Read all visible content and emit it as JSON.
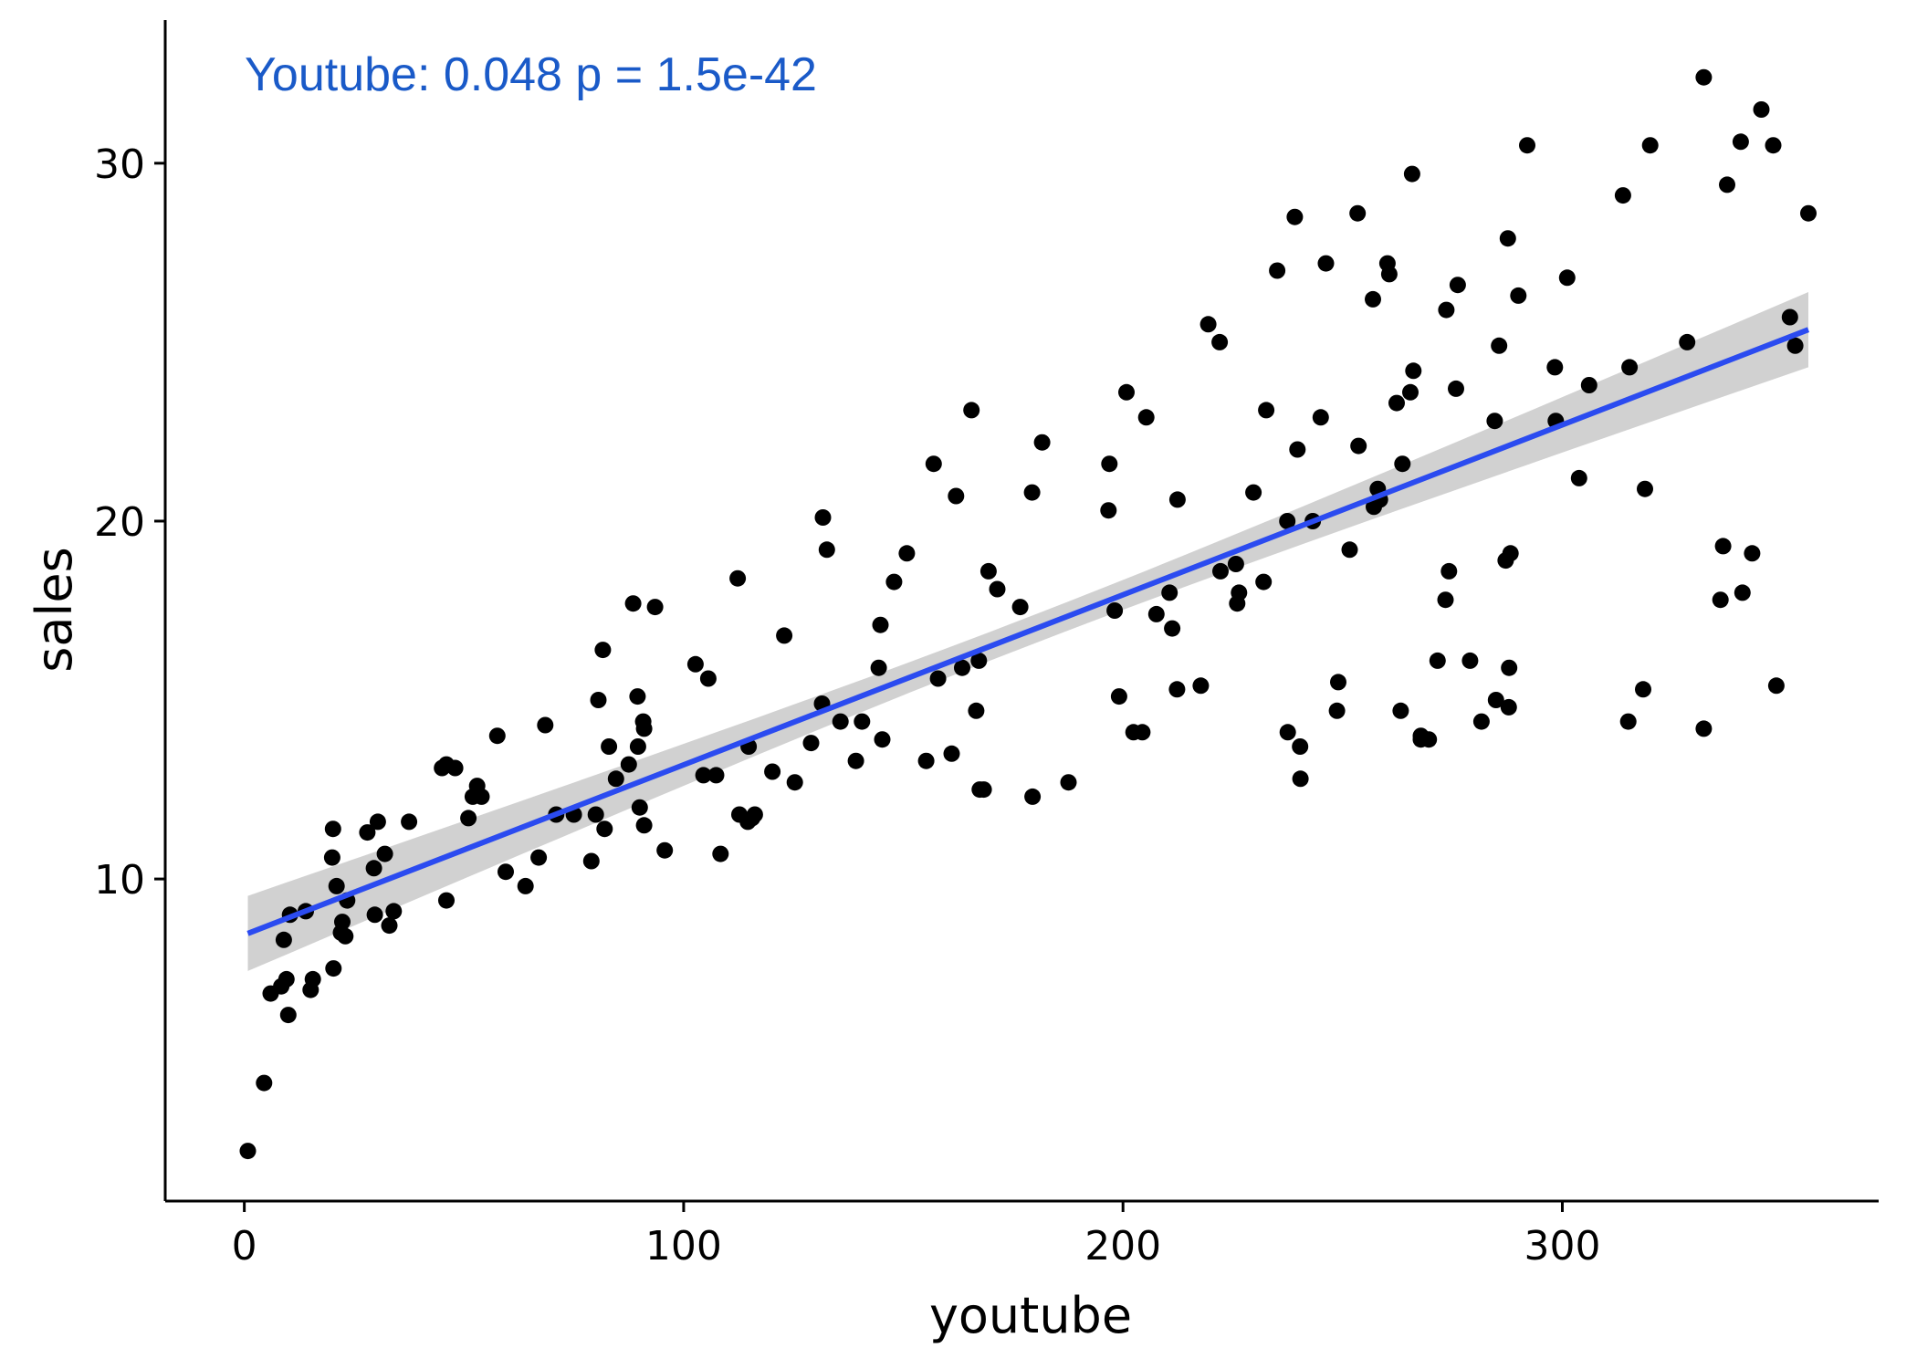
{
  "chart_data": {
    "type": "scatter",
    "xlabel": "youtube",
    "ylabel": "sales",
    "xlim": [
      -18,
      372
    ],
    "ylim": [
      1.0,
      34.0
    ],
    "x_ticks": [
      0,
      100,
      200,
      300
    ],
    "y_ticks": [
      10,
      20,
      30
    ],
    "annotation": "Youtube:  0.048  p =  1.5e-42",
    "colors": {
      "points": "#000000",
      "fit_line": "#2B4BF0",
      "ci_band": "#CCCCCC",
      "annotation": "#1A5AC8"
    },
    "grid": false,
    "fit": {
      "intercept": 8.44,
      "slope": 0.0475,
      "x_range": [
        0.8,
        356
      ],
      "ci_halfwidth_ends": 1.05,
      "ci_halfwidth_mid": 0.4
    },
    "points": [
      [
        0.8,
        2.4
      ],
      [
        4.5,
        4.3
      ],
      [
        6,
        6.8
      ],
      [
        8.4,
        7.0
      ],
      [
        9,
        8.3
      ],
      [
        9.6,
        7.2
      ],
      [
        10,
        6.2
      ],
      [
        10.4,
        9.0
      ],
      [
        14,
        9.1
      ],
      [
        15.1,
        6.9
      ],
      [
        15.6,
        7.2
      ],
      [
        20,
        10.6
      ],
      [
        20.2,
        11.4
      ],
      [
        20.3,
        7.5
      ],
      [
        21,
        9.8
      ],
      [
        22,
        8.5
      ],
      [
        22.3,
        8.8
      ],
      [
        23,
        8.4
      ],
      [
        23.4,
        9.4
      ],
      [
        28,
        11.3
      ],
      [
        29.5,
        10.3
      ],
      [
        29.7,
        9.0
      ],
      [
        30.4,
        11.6
      ],
      [
        32,
        10.7
      ],
      [
        33,
        8.7
      ],
      [
        34,
        9.1
      ],
      [
        37.5,
        11.6
      ],
      [
        45,
        13.1
      ],
      [
        46,
        13.2
      ],
      [
        46,
        9.4
      ],
      [
        48,
        13.1
      ],
      [
        51,
        11.7
      ],
      [
        52,
        12.3
      ],
      [
        53,
        12.6
      ],
      [
        54,
        12.3
      ],
      [
        57.6,
        14.0
      ],
      [
        59.5,
        10.2
      ],
      [
        64,
        9.8
      ],
      [
        67,
        10.6
      ],
      [
        68.5,
        14.3
      ],
      [
        71,
        11.8
      ],
      [
        75,
        11.8
      ],
      [
        79,
        10.5
      ],
      [
        80,
        11.8
      ],
      [
        80.6,
        15.0
      ],
      [
        81.6,
        16.4
      ],
      [
        82,
        11.4
      ],
      [
        83,
        13.7
      ],
      [
        84.6,
        12.8
      ],
      [
        87.5,
        13.2
      ],
      [
        88.5,
        17.7
      ],
      [
        89.5,
        15.1
      ],
      [
        89.6,
        13.7
      ],
      [
        90,
        12.0
      ],
      [
        90.8,
        14.4
      ],
      [
        91,
        11.5
      ],
      [
        91,
        14.2
      ],
      [
        93.5,
        17.6
      ],
      [
        95.7,
        10.8
      ],
      [
        102.7,
        16.0
      ],
      [
        104.5,
        12.9
      ],
      [
        105.6,
        15.6
      ],
      [
        107.4,
        12.9
      ],
      [
        108.4,
        10.7
      ],
      [
        112.3,
        18.4
      ],
      [
        112.7,
        11.8
      ],
      [
        114.6,
        11.6
      ],
      [
        114.8,
        13.7
      ],
      [
        115.6,
        11.7
      ],
      [
        116.2,
        11.8
      ],
      [
        120.2,
        13.0
      ],
      [
        122.9,
        16.8
      ],
      [
        125.3,
        12.7
      ],
      [
        129,
        13.8
      ],
      [
        131.5,
        14.9
      ],
      [
        131.7,
        20.1
      ],
      [
        132.6,
        19.2
      ],
      [
        135.7,
        14.4
      ],
      [
        139.2,
        13.3
      ],
      [
        140.6,
        14.4
      ],
      [
        144.4,
        15.9
      ],
      [
        144.8,
        17.1
      ],
      [
        145.2,
        13.9
      ],
      [
        147.9,
        18.3
      ],
      [
        150.8,
        19.1
      ],
      [
        155.2,
        13.3
      ],
      [
        156.9,
        21.6
      ],
      [
        157.9,
        15.6
      ],
      [
        161.0,
        13.5
      ],
      [
        162.0,
        20.7
      ],
      [
        163.4,
        15.9
      ],
      [
        165.5,
        23.1
      ],
      [
        166.6,
        14.7
      ],
      [
        167.2,
        16.1
      ],
      [
        167.4,
        12.5
      ],
      [
        168.3,
        12.5
      ],
      [
        169.4,
        18.6
      ],
      [
        171.4,
        18.1
      ],
      [
        176.6,
        17.6
      ],
      [
        179.4,
        12.3
      ],
      [
        179.3,
        20.8
      ],
      [
        181.6,
        22.2
      ],
      [
        187.6,
        12.7
      ],
      [
        196.7,
        20.3
      ],
      [
        196.9,
        21.6
      ],
      [
        198.1,
        17.5
      ],
      [
        199.1,
        15.1
      ],
      [
        200.8,
        23.6
      ],
      [
        202.4,
        14.1
      ],
      [
        204.4,
        14.1
      ],
      [
        205.3,
        22.9
      ],
      [
        207.6,
        17.4
      ],
      [
        210.6,
        18.0
      ],
      [
        211.2,
        17.0
      ],
      [
        212.3,
        15.3
      ],
      [
        212.4,
        20.6
      ],
      [
        217.7,
        15.4
      ],
      [
        219.4,
        25.5
      ],
      [
        222.0,
        25.0
      ],
      [
        222.2,
        18.6
      ],
      [
        225.7,
        18.8
      ],
      [
        226.0,
        17.7
      ],
      [
        226.4,
        18.0
      ],
      [
        229.7,
        20.8
      ],
      [
        232.0,
        18.3
      ],
      [
        232.6,
        23.1
      ],
      [
        235.1,
        27.0
      ],
      [
        237.4,
        20.0
      ],
      [
        237.5,
        14.1
      ],
      [
        239.1,
        28.5
      ],
      [
        239.7,
        22.0
      ],
      [
        240.3,
        13.7
      ],
      [
        240.4,
        12.8
      ],
      [
        243.2,
        20.0
      ],
      [
        245.0,
        22.9
      ],
      [
        246.2,
        27.2
      ],
      [
        248.7,
        14.7
      ],
      [
        249.0,
        15.5
      ],
      [
        251.6,
        19.2
      ],
      [
        253.4,
        28.6
      ],
      [
        253.6,
        22.1
      ],
      [
        256.9,
        26.2
      ],
      [
        257.1,
        20.4
      ],
      [
        258.0,
        20.9
      ],
      [
        258.5,
        20.6
      ],
      [
        260.2,
        27.2
      ],
      [
        260.6,
        26.9
      ],
      [
        262.3,
        23.3
      ],
      [
        263.2,
        14.7
      ],
      [
        263.6,
        21.6
      ],
      [
        265.4,
        23.6
      ],
      [
        265.8,
        29.7
      ],
      [
        266.1,
        24.2
      ],
      [
        267.8,
        13.9
      ],
      [
        267.8,
        14.0
      ],
      [
        269.6,
        13.9
      ],
      [
        271.6,
        16.1
      ],
      [
        273.4,
        17.8
      ],
      [
        273.6,
        25.9
      ],
      [
        274.2,
        18.6
      ],
      [
        275.8,
        23.7
      ],
      [
        276.2,
        26.6
      ],
      [
        279.0,
        16.1
      ],
      [
        281.6,
        14.4
      ],
      [
        284.6,
        22.8
      ],
      [
        284.9,
        15.0
      ],
      [
        285.6,
        24.9
      ],
      [
        287.1,
        18.9
      ],
      [
        287.6,
        27.9
      ],
      [
        287.8,
        14.8
      ],
      [
        287.9,
        15.9
      ],
      [
        288.2,
        19.1
      ],
      [
        290.0,
        26.3
      ],
      [
        292.0,
        30.5
      ],
      [
        298.3,
        24.3
      ],
      [
        298.5,
        22.8
      ],
      [
        301.1,
        26.8
      ],
      [
        303.8,
        21.2
      ],
      [
        306.1,
        23.8
      ],
      [
        313.8,
        29.1
      ],
      [
        315.0,
        14.4
      ],
      [
        315.3,
        24.3
      ],
      [
        318.4,
        15.3
      ],
      [
        318.8,
        20.9
      ],
      [
        320.0,
        30.5
      ],
      [
        328.4,
        25.0
      ],
      [
        332.2,
        32.4
      ],
      [
        332.2,
        14.2
      ],
      [
        336.0,
        17.8
      ],
      [
        336.6,
        19.3
      ],
      [
        337.5,
        29.4
      ],
      [
        340.6,
        30.6
      ],
      [
        341.0,
        18.0
      ],
      [
        343.2,
        19.1
      ],
      [
        345.3,
        31.5
      ],
      [
        348.0,
        30.5
      ],
      [
        348.7,
        15.4
      ],
      [
        351.8,
        25.7
      ],
      [
        353.0,
        24.9
      ],
      [
        356.0,
        28.6
      ]
    ]
  }
}
